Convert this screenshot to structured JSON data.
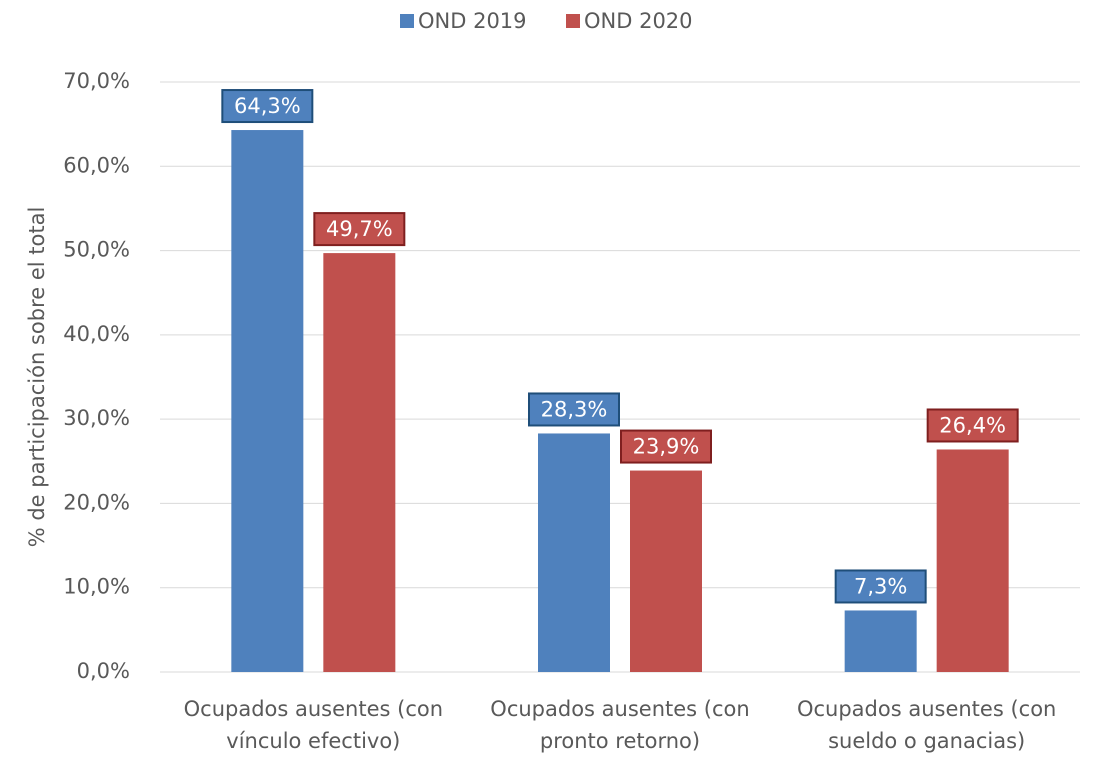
{
  "chart_data": {
    "type": "bar",
    "y_label": "% de participación sobre el total",
    "categories": [
      [
        "Ocupados ausentes (con",
        "vínculo efectivo)"
      ],
      [
        "Ocupados ausentes (con",
        "pronto retorno)"
      ],
      [
        "Ocupados ausentes (con",
        "sueldo o ganacias)"
      ]
    ],
    "series": [
      {
        "name": "OND 2019",
        "color": "#4f81bd",
        "label_border": "#1f4e79",
        "values": [
          64.3,
          28.3,
          7.3
        ],
        "value_labels": [
          "64,3%",
          "28,3%",
          "7,3%"
        ]
      },
      {
        "name": "OND 2020",
        "color": "#c0504d",
        "label_border": "#7f1f1f",
        "values": [
          49.7,
          23.9,
          26.4
        ],
        "value_labels": [
          "49,7%",
          "23,9%",
          "26,4%"
        ]
      }
    ],
    "ylim": [
      0,
      70
    ],
    "yticks": [
      {
        "value": 0,
        "label": "0,0%"
      },
      {
        "value": 10,
        "label": "10,0%"
      },
      {
        "value": 20,
        "label": "20,0%"
      },
      {
        "value": 30,
        "label": "30,0%"
      },
      {
        "value": 40,
        "label": "40,0%"
      },
      {
        "value": 50,
        "label": "50,0%"
      },
      {
        "value": 60,
        "label": "60,0%"
      },
      {
        "value": 70,
        "label": "70,0%"
      }
    ],
    "grid": true,
    "legend": "top"
  }
}
